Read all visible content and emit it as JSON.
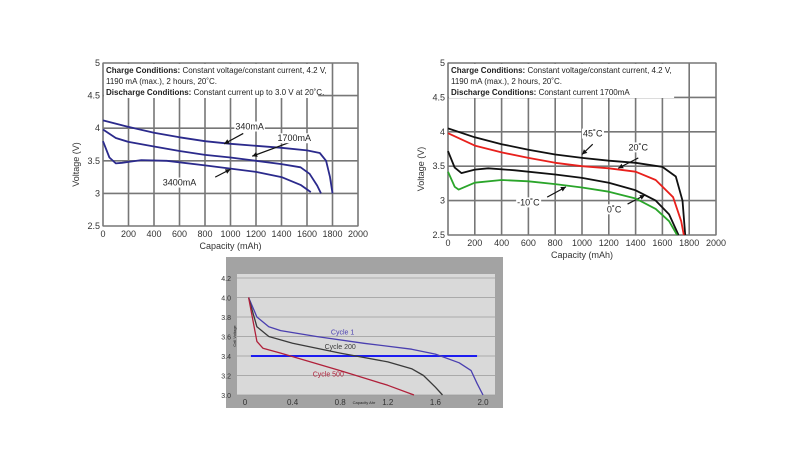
{
  "chart_data": [
    {
      "type": "line",
      "xlabel": "Capacity (mAh)",
      "ylabel": "Voltage (V)",
      "xlim": [
        0,
        2000
      ],
      "ylim": [
        2.5,
        5.0
      ],
      "xticks": [
        0,
        200,
        400,
        600,
        800,
        1000,
        1200,
        1400,
        1600,
        1800,
        2000
      ],
      "yticks": [
        2.5,
        3.0,
        3.5,
        4.0,
        4.5,
        5.0
      ],
      "grid": true,
      "conditions": {
        "charge_label": "Charge Conditions:",
        "charge_text": " Constant voltage/constant current, 4.2 V,",
        "charge_text2": "1190 mA (max.), 2 hours, 20˚C.",
        "discharge_label": "Discharge Conditions:",
        "discharge_text": " Constant current up to 3.0 V at 20˚C."
      },
      "series": [
        {
          "name": "340mA",
          "color": "#2b2a8c",
          "label_at": [
            1150,
            3.98
          ],
          "arrow": [
            [
              1100,
              3.92
            ],
            [
              950,
              3.76
            ]
          ],
          "x": [
            0,
            200,
            400,
            600,
            800,
            1000,
            1200,
            1400,
            1600,
            1700,
            1750,
            1780,
            1800
          ],
          "y": [
            4.12,
            4.02,
            3.93,
            3.86,
            3.8,
            3.76,
            3.73,
            3.7,
            3.66,
            3.62,
            3.5,
            3.25,
            3.0
          ]
        },
        {
          "name": "1700mA",
          "color": "#2b2a8c",
          "label_at": [
            1500,
            3.8
          ],
          "arrow": [
            [
              1460,
              3.78
            ],
            [
              1170,
              3.57
            ]
          ],
          "x": [
            0,
            100,
            200,
            400,
            600,
            800,
            1000,
            1200,
            1400,
            1550,
            1620,
            1680,
            1710
          ],
          "y": [
            3.98,
            3.85,
            3.79,
            3.72,
            3.65,
            3.59,
            3.55,
            3.5,
            3.45,
            3.4,
            3.3,
            3.12,
            3.0
          ]
        },
        {
          "name": "3400mA",
          "color": "#2b2a8c",
          "label_at": [
            600,
            3.12
          ],
          "arrow": [
            [
              880,
              3.25
            ],
            [
              1000,
              3.37
            ]
          ],
          "x": [
            0,
            50,
            100,
            150,
            300,
            500,
            800,
            1000,
            1200,
            1400,
            1550,
            1630
          ],
          "y": [
            3.8,
            3.55,
            3.46,
            3.47,
            3.51,
            3.5,
            3.43,
            3.38,
            3.33,
            3.25,
            3.13,
            3.02
          ]
        }
      ]
    },
    {
      "type": "line",
      "xlabel": "Capacity (mAh)",
      "ylabel": "Voltage (V)",
      "xlim": [
        0,
        2000
      ],
      "ylim": [
        2.5,
        5.0
      ],
      "xticks": [
        0,
        200,
        400,
        600,
        800,
        1000,
        1200,
        1400,
        1600,
        1800,
        2000
      ],
      "yticks": [
        2.5,
        3.0,
        3.5,
        4.0,
        4.5,
        5.0
      ],
      "grid": true,
      "conditions": {
        "charge_label": "Charge Conditions:",
        "charge_text": " Constant voltage/constant current, 4.2 V,",
        "charge_text2": "1190 mA (max.), 2 hours, 20˚C.",
        "discharge_label": "Discharge Conditions:",
        "discharge_text": " Constant current 1700mA"
      },
      "series": [
        {
          "name": "45˚C",
          "color": "#111111",
          "label_at": [
            1080,
            3.93
          ],
          "arrow": [
            [
              1080,
              3.82
            ],
            [
              1000,
              3.67
            ]
          ],
          "x": [
            0,
            200,
            400,
            600,
            800,
            1000,
            1200,
            1400,
            1600,
            1700,
            1750,
            1770
          ],
          "y": [
            4.05,
            3.92,
            3.82,
            3.74,
            3.67,
            3.62,
            3.58,
            3.55,
            3.49,
            3.35,
            3.0,
            2.5
          ]
        },
        {
          "name": "20˚C",
          "color": "#e8201c",
          "label_at": [
            1420,
            3.73
          ],
          "arrow": [
            [
              1420,
              3.62
            ],
            [
              1270,
              3.47
            ]
          ],
          "x": [
            0,
            200,
            400,
            600,
            800,
            1000,
            1200,
            1400,
            1550,
            1680,
            1740,
            1760
          ],
          "y": [
            3.98,
            3.8,
            3.7,
            3.62,
            3.55,
            3.5,
            3.47,
            3.42,
            3.3,
            3.05,
            2.7,
            2.5
          ]
        },
        {
          "name": "0˚C",
          "color": "#111111",
          "label_at": [
            1240,
            2.83
          ],
          "arrow": [
            [
              1340,
              2.95
            ],
            [
              1470,
              3.08
            ]
          ],
          "x": [
            0,
            50,
            100,
            200,
            300,
            500,
            800,
            1000,
            1200,
            1400,
            1550,
            1650,
            1720
          ],
          "y": [
            3.72,
            3.48,
            3.4,
            3.45,
            3.47,
            3.44,
            3.38,
            3.33,
            3.26,
            3.15,
            3.0,
            2.8,
            2.5
          ]
        },
        {
          "name": "-10˚C",
          "color": "#2aa52a",
          "label_at": [
            600,
            2.93
          ],
          "arrow": [
            [
              740,
              3.05
            ],
            [
              880,
              3.2
            ]
          ],
          "x": [
            0,
            50,
            80,
            200,
            400,
            600,
            800,
            1000,
            1200,
            1400,
            1550,
            1650,
            1710
          ],
          "y": [
            3.42,
            3.2,
            3.16,
            3.26,
            3.3,
            3.28,
            3.24,
            3.19,
            3.13,
            3.03,
            2.88,
            2.7,
            2.5
          ]
        }
      ]
    },
    {
      "type": "line",
      "xlabel": "Capacity Ahr",
      "ylabel": "Cell Voltage",
      "xlim": [
        0,
        2.0
      ],
      "ylim": [
        3.0,
        4.2
      ],
      "xticks": [
        "0",
        "0.4",
        "0.8",
        "1.2",
        "1.6",
        "2.0"
      ],
      "yticks": [
        "3.0",
        "3.2",
        "3.4",
        "3.6",
        "3.8",
        "4.0",
        "4.2"
      ],
      "grid": true,
      "reference_line": {
        "y": 3.4,
        "x": [
          0.05,
          1.95
        ],
        "color": "#1c1cf0"
      },
      "series": [
        {
          "name": "Cycle 1",
          "color": "#4a3fb0",
          "label_at": [
            0.82,
            3.62
          ],
          "x": [
            0.03,
            0.1,
            0.2,
            0.3,
            0.6,
            1.0,
            1.4,
            1.6,
            1.8,
            1.9,
            1.95,
            2.0
          ],
          "y": [
            4.0,
            3.8,
            3.7,
            3.66,
            3.6,
            3.53,
            3.47,
            3.42,
            3.33,
            3.25,
            3.12,
            3.0
          ]
        },
        {
          "name": "Cycle 200",
          "color": "#3a3a3a",
          "label_at": [
            0.8,
            3.47
          ],
          "x": [
            0.03,
            0.1,
            0.2,
            0.4,
            0.8,
            1.2,
            1.4,
            1.5,
            1.6,
            1.66
          ],
          "y": [
            4.0,
            3.7,
            3.6,
            3.53,
            3.43,
            3.34,
            3.27,
            3.2,
            3.08,
            3.0
          ]
        },
        {
          "name": "Cycle 500",
          "color": "#b0203a",
          "label_at": [
            0.7,
            3.19
          ],
          "x": [
            0.03,
            0.1,
            0.15,
            0.3,
            0.8,
            1.2,
            1.42
          ],
          "y": [
            4.0,
            3.55,
            3.48,
            3.43,
            3.25,
            3.1,
            3.0
          ]
        }
      ]
    }
  ]
}
